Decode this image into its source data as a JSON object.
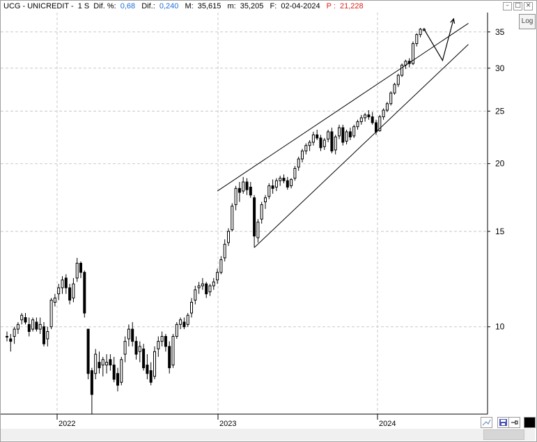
{
  "header": {
    "symbol": "UCG - UNICREDIT -",
    "period": "1 S",
    "dif_pct_label": "Dif. %:",
    "dif_pct_value": "0,68",
    "dif_label": "Dif.:",
    "dif_value": "0,240",
    "max_label": "M:",
    "max_value": "35,615",
    "min_label": "m:",
    "min_value": "35,205",
    "date_label": "F:",
    "date_value": "02-04-2024",
    "p_label": "P :",
    "p_value": "21,228"
  },
  "log_button": "Log",
  "colors": {
    "blue_value": "#1e6fd9",
    "red_value": "#e0201b",
    "candle": "#000000",
    "grid": "#c8c8c8"
  },
  "icons": [
    "minimize-icon",
    "restore-icon",
    "close-icon",
    "zoom-icon",
    "save-icon",
    "pin-icon",
    "fill-icon"
  ],
  "chart_data": {
    "type": "candlestick",
    "scale": "log",
    "ylim": [
      6.9,
      38.0
    ],
    "yticks": [
      10,
      15,
      20,
      25,
      30,
      35
    ],
    "xticks": [
      "2022",
      "2023",
      "2024"
    ],
    "grid": true,
    "xlabel": "",
    "ylabel": "",
    "candles": [
      {
        "o": 9.6,
        "h": 9.8,
        "l": 9.4,
        "c": 9.6
      },
      {
        "o": 9.5,
        "h": 9.7,
        "l": 9.0,
        "c": 9.4
      },
      {
        "o": 9.6,
        "h": 10.0,
        "l": 9.3,
        "c": 9.9
      },
      {
        "o": 9.9,
        "h": 10.2,
        "l": 9.7,
        "c": 10.1
      },
      {
        "o": 10.3,
        "h": 10.6,
        "l": 10.1,
        "c": 10.5
      },
      {
        "o": 10.4,
        "h": 10.6,
        "l": 10.1,
        "c": 10.2
      },
      {
        "o": 10.1,
        "h": 10.4,
        "l": 9.6,
        "c": 9.8
      },
      {
        "o": 9.9,
        "h": 10.4,
        "l": 9.8,
        "c": 10.3
      },
      {
        "o": 10.2,
        "h": 10.4,
        "l": 9.8,
        "c": 9.9
      },
      {
        "o": 9.9,
        "h": 10.4,
        "l": 9.7,
        "c": 10.1
      },
      {
        "o": 10.0,
        "h": 10.2,
        "l": 9.2,
        "c": 9.3
      },
      {
        "o": 9.5,
        "h": 10.0,
        "l": 9.2,
        "c": 9.8
      },
      {
        "o": 10.0,
        "h": 11.3,
        "l": 9.9,
        "c": 11.2
      },
      {
        "o": 11.1,
        "h": 11.5,
        "l": 10.9,
        "c": 11.3
      },
      {
        "o": 11.5,
        "h": 12.0,
        "l": 11.2,
        "c": 11.8
      },
      {
        "o": 11.8,
        "h": 12.4,
        "l": 11.5,
        "c": 12.2
      },
      {
        "o": 12.3,
        "h": 12.5,
        "l": 11.5,
        "c": 11.8
      },
      {
        "o": 11.8,
        "h": 12.0,
        "l": 11.0,
        "c": 11.2
      },
      {
        "o": 11.3,
        "h": 12.3,
        "l": 11.1,
        "c": 12.0
      },
      {
        "o": 12.3,
        "h": 13.4,
        "l": 12.1,
        "c": 13.1
      },
      {
        "o": 13.1,
        "h": 13.2,
        "l": 12.3,
        "c": 12.6
      },
      {
        "o": 12.6,
        "h": 12.7,
        "l": 10.4,
        "c": 10.6
      },
      {
        "o": 9.9,
        "h": 9.9,
        "l": 8.0,
        "c": 8.2
      },
      {
        "o": 8.3,
        "h": 8.4,
        "l": 6.9,
        "c": 7.5
      },
      {
        "o": 8.2,
        "h": 9.1,
        "l": 8.0,
        "c": 8.9
      },
      {
        "o": 8.6,
        "h": 9.0,
        "l": 8.2,
        "c": 8.4
      },
      {
        "o": 8.5,
        "h": 8.8,
        "l": 8.1,
        "c": 8.7
      },
      {
        "o": 8.5,
        "h": 8.9,
        "l": 8.2,
        "c": 8.6
      },
      {
        "o": 8.7,
        "h": 8.9,
        "l": 8.3,
        "c": 8.5
      },
      {
        "o": 8.5,
        "h": 8.8,
        "l": 7.9,
        "c": 8.0
      },
      {
        "o": 8.2,
        "h": 8.4,
        "l": 7.6,
        "c": 7.8
      },
      {
        "o": 7.9,
        "h": 8.8,
        "l": 7.8,
        "c": 8.7
      },
      {
        "o": 8.9,
        "h": 9.6,
        "l": 8.6,
        "c": 9.4
      },
      {
        "o": 9.5,
        "h": 10.1,
        "l": 9.2,
        "c": 9.9
      },
      {
        "o": 9.9,
        "h": 10.2,
        "l": 9.2,
        "c": 9.4
      },
      {
        "o": 9.4,
        "h": 9.6,
        "l": 8.7,
        "c": 8.9
      },
      {
        "o": 9.0,
        "h": 9.4,
        "l": 8.6,
        "c": 9.2
      },
      {
        "o": 9.1,
        "h": 9.3,
        "l": 8.3,
        "c": 8.4
      },
      {
        "o": 8.5,
        "h": 8.9,
        "l": 8.0,
        "c": 8.2
      },
      {
        "o": 8.3,
        "h": 8.6,
        "l": 7.8,
        "c": 7.9
      },
      {
        "o": 8.1,
        "h": 9.2,
        "l": 8.0,
        "c": 9.0
      },
      {
        "o": 9.1,
        "h": 9.6,
        "l": 8.8,
        "c": 9.4
      },
      {
        "o": 9.4,
        "h": 9.8,
        "l": 9.2,
        "c": 9.6
      },
      {
        "o": 9.6,
        "h": 9.7,
        "l": 9.0,
        "c": 9.2
      },
      {
        "o": 9.2,
        "h": 9.4,
        "l": 8.2,
        "c": 8.4
      },
      {
        "o": 8.5,
        "h": 9.7,
        "l": 8.4,
        "c": 9.6
      },
      {
        "o": 9.6,
        "h": 10.2,
        "l": 9.5,
        "c": 10.1
      },
      {
        "o": 10.1,
        "h": 10.4,
        "l": 9.9,
        "c": 10.3
      },
      {
        "o": 10.2,
        "h": 10.4,
        "l": 9.9,
        "c": 10.0
      },
      {
        "o": 10.1,
        "h": 10.6,
        "l": 10.0,
        "c": 10.5
      },
      {
        "o": 10.6,
        "h": 11.3,
        "l": 10.4,
        "c": 11.1
      },
      {
        "o": 11.2,
        "h": 11.9,
        "l": 11.0,
        "c": 11.7
      },
      {
        "o": 11.8,
        "h": 12.1,
        "l": 11.5,
        "c": 11.9
      },
      {
        "o": 11.9,
        "h": 12.3,
        "l": 11.7,
        "c": 12.0
      },
      {
        "o": 12.0,
        "h": 12.1,
        "l": 11.3,
        "c": 11.5
      },
      {
        "o": 11.6,
        "h": 12.0,
        "l": 11.4,
        "c": 11.9
      },
      {
        "o": 11.9,
        "h": 12.3,
        "l": 11.7,
        "c": 12.1
      },
      {
        "o": 12.2,
        "h": 12.8,
        "l": 12.0,
        "c": 12.6
      },
      {
        "o": 12.6,
        "h": 13.5,
        "l": 12.5,
        "c": 13.3
      },
      {
        "o": 13.4,
        "h": 14.5,
        "l": 13.2,
        "c": 14.2
      },
      {
        "o": 14.3,
        "h": 15.2,
        "l": 14.1,
        "c": 15.0
      },
      {
        "o": 15.1,
        "h": 16.9,
        "l": 15.0,
        "c": 16.7
      },
      {
        "o": 16.8,
        "h": 18.2,
        "l": 16.4,
        "c": 18.0
      },
      {
        "o": 18.0,
        "h": 18.5,
        "l": 17.0,
        "c": 17.7
      },
      {
        "o": 17.8,
        "h": 18.9,
        "l": 17.6,
        "c": 18.5
      },
      {
        "o": 18.5,
        "h": 18.8,
        "l": 17.5,
        "c": 17.9
      },
      {
        "o": 18.1,
        "h": 18.5,
        "l": 17.3,
        "c": 17.5
      },
      {
        "o": 17.3,
        "h": 17.5,
        "l": 14.0,
        "c": 14.7
      },
      {
        "o": 14.6,
        "h": 15.8,
        "l": 14.3,
        "c": 15.6
      },
      {
        "o": 15.8,
        "h": 17.0,
        "l": 15.5,
        "c": 16.8
      },
      {
        "o": 17.0,
        "h": 17.5,
        "l": 16.5,
        "c": 17.3
      },
      {
        "o": 17.4,
        "h": 18.4,
        "l": 17.2,
        "c": 18.2
      },
      {
        "o": 18.2,
        "h": 18.7,
        "l": 17.6,
        "c": 18.0
      },
      {
        "o": 18.1,
        "h": 18.8,
        "l": 17.8,
        "c": 18.6
      },
      {
        "o": 18.6,
        "h": 19.0,
        "l": 18.2,
        "c": 18.8
      },
      {
        "o": 18.8,
        "h": 19.1,
        "l": 18.4,
        "c": 18.6
      },
      {
        "o": 18.6,
        "h": 18.9,
        "l": 17.9,
        "c": 18.1
      },
      {
        "o": 18.2,
        "h": 18.8,
        "l": 18.0,
        "c": 18.7
      },
      {
        "o": 18.8,
        "h": 19.8,
        "l": 18.6,
        "c": 19.6
      },
      {
        "o": 19.7,
        "h": 20.6,
        "l": 19.4,
        "c": 20.4
      },
      {
        "o": 20.4,
        "h": 21.3,
        "l": 20.1,
        "c": 21.1
      },
      {
        "o": 21.1,
        "h": 21.8,
        "l": 20.8,
        "c": 21.6
      },
      {
        "o": 21.6,
        "h": 22.1,
        "l": 21.1,
        "c": 21.9
      },
      {
        "o": 21.9,
        "h": 22.9,
        "l": 21.6,
        "c": 22.6
      },
      {
        "o": 22.6,
        "h": 23.1,
        "l": 22.1,
        "c": 22.3
      },
      {
        "o": 22.3,
        "h": 22.6,
        "l": 21.1,
        "c": 21.4
      },
      {
        "o": 21.5,
        "h": 22.3,
        "l": 21.2,
        "c": 22.1
      },
      {
        "o": 22.2,
        "h": 23.1,
        "l": 21.9,
        "c": 22.9
      },
      {
        "o": 22.9,
        "h": 23.3,
        "l": 20.9,
        "c": 21.1
      },
      {
        "o": 21.2,
        "h": 22.6,
        "l": 20.8,
        "c": 22.4
      },
      {
        "o": 22.5,
        "h": 23.6,
        "l": 22.2,
        "c": 23.3
      },
      {
        "o": 23.3,
        "h": 23.6,
        "l": 21.6,
        "c": 21.9
      },
      {
        "o": 22.0,
        "h": 23.1,
        "l": 21.7,
        "c": 22.9
      },
      {
        "o": 22.9,
        "h": 23.3,
        "l": 22.1,
        "c": 22.4
      },
      {
        "o": 22.5,
        "h": 23.6,
        "l": 22.3,
        "c": 23.4
      },
      {
        "o": 23.4,
        "h": 24.1,
        "l": 23.1,
        "c": 23.9
      },
      {
        "o": 23.9,
        "h": 24.6,
        "l": 23.6,
        "c": 24.3
      },
      {
        "o": 24.3,
        "h": 24.8,
        "l": 23.9,
        "c": 24.6
      },
      {
        "o": 24.6,
        "h": 25.1,
        "l": 24.1,
        "c": 24.4
      },
      {
        "o": 24.4,
        "h": 24.9,
        "l": 23.6,
        "c": 23.8
      },
      {
        "o": 23.8,
        "h": 24.1,
        "l": 22.6,
        "c": 22.9
      },
      {
        "o": 23.0,
        "h": 24.6,
        "l": 22.9,
        "c": 24.4
      },
      {
        "o": 24.4,
        "h": 25.3,
        "l": 24.1,
        "c": 25.1
      },
      {
        "o": 25.1,
        "h": 26.0,
        "l": 24.9,
        "c": 25.8
      },
      {
        "o": 25.8,
        "h": 27.2,
        "l": 25.6,
        "c": 27.0
      },
      {
        "o": 27.0,
        "h": 28.2,
        "l": 26.8,
        "c": 28.0
      },
      {
        "o": 28.0,
        "h": 29.3,
        "l": 27.7,
        "c": 29.1
      },
      {
        "o": 29.1,
        "h": 30.6,
        "l": 28.9,
        "c": 30.4
      },
      {
        "o": 30.4,
        "h": 31.1,
        "l": 29.9,
        "c": 30.9
      },
      {
        "o": 30.9,
        "h": 31.3,
        "l": 30.1,
        "c": 30.6
      },
      {
        "o": 30.6,
        "h": 33.6,
        "l": 30.4,
        "c": 33.3
      },
      {
        "o": 33.3,
        "h": 34.8,
        "l": 32.9,
        "c": 34.6
      },
      {
        "o": 34.6,
        "h": 35.6,
        "l": 34.2,
        "c": 35.4
      },
      {
        "o": 35.2,
        "h": 35.6,
        "l": 35.2,
        "c": 35.4
      }
    ],
    "trendlines": [
      {
        "from": [
          57,
          17.8
        ],
        "to": [
          125,
          36.3
        ]
      },
      {
        "from": [
          67,
          14.0
        ],
        "to": [
          125,
          33.2
        ]
      }
    ],
    "projection_arrow": [
      [
        113,
        35.4
      ],
      [
        118,
        31.0
      ],
      [
        121,
        37.0
      ]
    ]
  }
}
